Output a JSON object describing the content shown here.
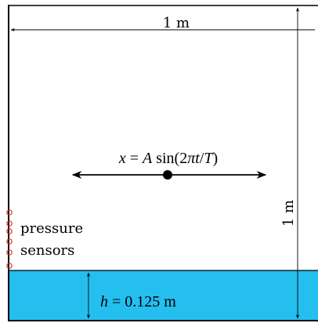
{
  "width_label": "1 m",
  "height_label": "1 m",
  "motion_label_parts": [
    "x",
    " = ",
    "A",
    " sin(2",
    "π",
    "t",
    "/",
    "T",
    ")"
  ],
  "depth_label_parts": [
    "h",
    " = 0.125 ",
    "m"
  ],
  "sensor_label_line1": "pressure",
  "sensor_label_line2": "sensors",
  "colors": {
    "water": "#24bfef",
    "outline": "#000000",
    "sensor": "#d6342c"
  }
}
